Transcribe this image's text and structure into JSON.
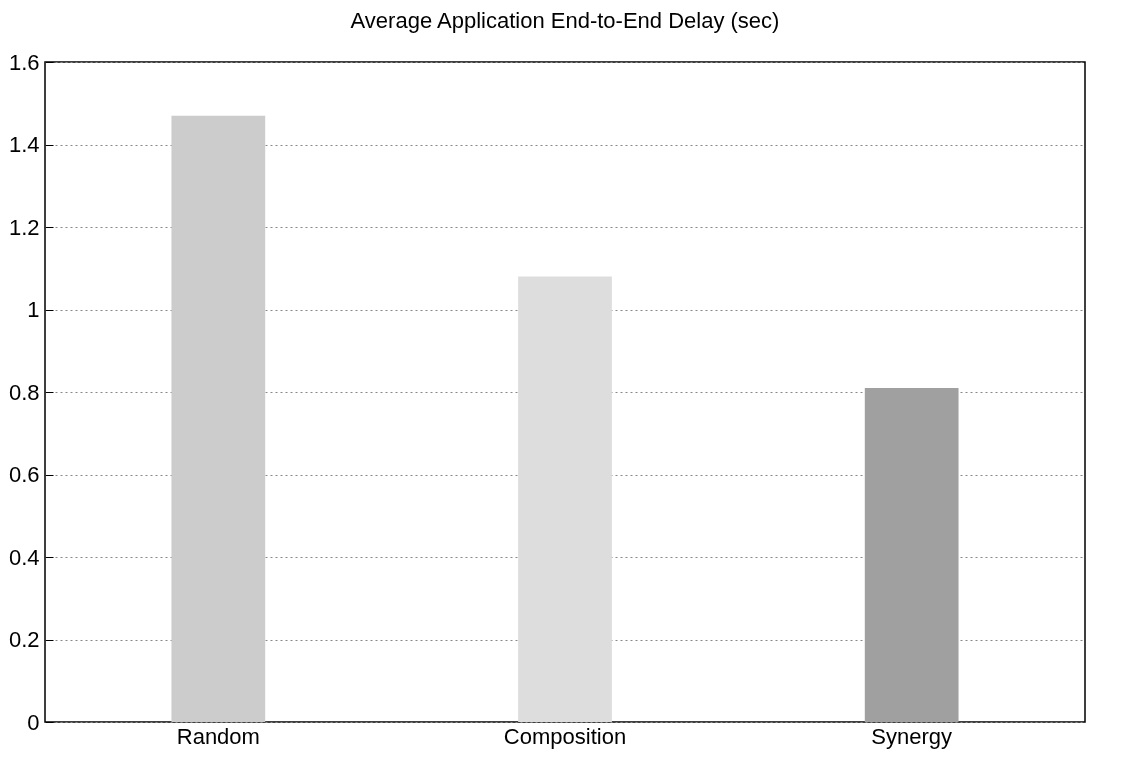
{
  "chart_data": {
    "type": "bar",
    "title": "Average Application End-to-End Delay (sec)",
    "categories": [
      "Random",
      "Composition",
      "Synergy"
    ],
    "values": [
      1.47,
      1.08,
      0.81
    ],
    "colors": [
      "#cccccc",
      "#dddddd",
      "#a0a0a0"
    ],
    "ylim": [
      0,
      1.6
    ],
    "yticks": [
      0,
      0.2,
      0.4,
      0.6,
      0.8,
      1,
      1.2,
      1.4,
      1.6
    ],
    "grid": "y",
    "legend": false
  }
}
